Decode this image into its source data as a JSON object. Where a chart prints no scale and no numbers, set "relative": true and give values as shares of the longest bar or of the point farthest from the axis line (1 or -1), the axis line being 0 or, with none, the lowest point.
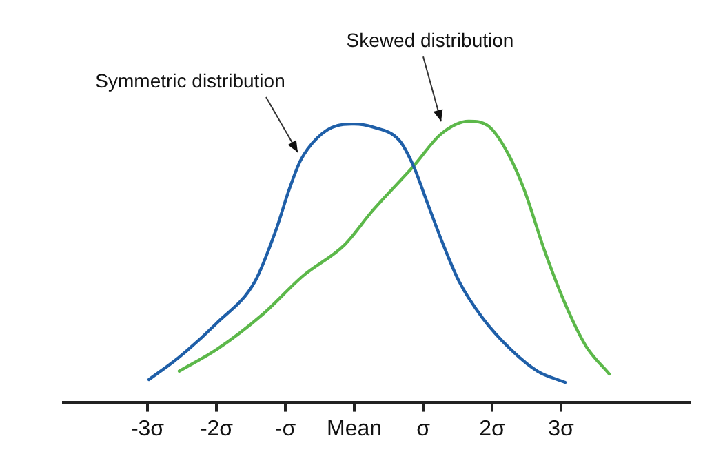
{
  "chart_data": {
    "type": "line",
    "relative": true,
    "grid": false,
    "legend": false,
    "marker": "none",
    "line_style": "solid",
    "xlim": [
      -4.22,
      4.86
    ],
    "xticks": [
      {
        "value": -3,
        "label": "-3σ"
      },
      {
        "value": -2,
        "label": "-2σ"
      },
      {
        "value": -1,
        "label": "-σ"
      },
      {
        "value": 0,
        "label": "Mean"
      },
      {
        "value": 1,
        "label": "σ"
      },
      {
        "value": 2,
        "label": "2σ"
      },
      {
        "value": 3,
        "label": "3σ"
      }
    ],
    "tick_labels": "x",
    "series": [
      {
        "color": "#1f5fa8",
        "x": [
          -2.98,
          -2.54,
          -2.0,
          -1.44,
          -1.14,
          -0.94,
          -0.78,
          -0.54,
          -0.24,
          0,
          0.26,
          0.66,
          0.86,
          1.06,
          1.26,
          1.52,
          1.86,
          2.26,
          2.66,
          3.06
        ],
        "values": [
          0.08,
          0.16,
          0.28,
          0.43,
          0.61,
          0.76,
          0.86,
          0.94,
          0.985,
          0.99,
          0.98,
          0.93,
          0.84,
          0.71,
          0.58,
          0.43,
          0.3,
          0.19,
          0.11,
          0.07
        ]
      },
      {
        "color": "#5cb84a",
        "x": [
          -2.54,
          -1.98,
          -1.34,
          -0.74,
          -0.14,
          0.26,
          0.86,
          1.26,
          1.66,
          1.96,
          2.22,
          2.46,
          2.76,
          3.06,
          3.36,
          3.7
        ],
        "values": [
          0.11,
          0.19,
          0.31,
          0.45,
          0.56,
          0.68,
          0.84,
          0.955,
          1,
          0.98,
          0.89,
          0.76,
          0.54,
          0.35,
          0.2,
          0.1
        ]
      }
    ],
    "annotations": [
      {
        "text": "Symmetric distribution",
        "x": -0.78,
        "y": 0.86
      },
      {
        "text": "Skewed distribution",
        "x": 1.3,
        "y": 0.97
      }
    ]
  }
}
